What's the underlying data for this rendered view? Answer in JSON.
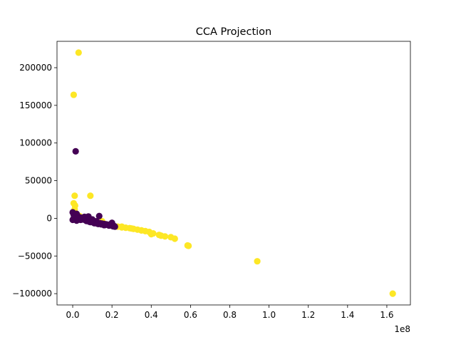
{
  "chart_data": {
    "type": "scatter",
    "title": "CCA Projection",
    "xlabel": "",
    "ylabel": "",
    "x_offset_label": "1e8",
    "x_scale_factor": 100000000,
    "xlim": [
      -0.08,
      1.72
    ],
    "ylim": [
      -115000,
      235000
    ],
    "x_ticks": [
      0.0,
      0.2,
      0.4,
      0.6,
      0.8,
      1.0,
      1.2,
      1.4,
      1.6
    ],
    "x_tick_labels": [
      "0.0",
      "0.2",
      "0.4",
      "0.6",
      "0.8",
      "1.0",
      "1.2",
      "1.4",
      "1.6"
    ],
    "y_ticks": [
      -100000,
      -50000,
      0,
      50000,
      100000,
      150000,
      200000
    ],
    "y_tick_labels": [
      "−100000",
      "−50000",
      "0",
      "50000",
      "100000",
      "150000",
      "200000"
    ],
    "grid": false,
    "legend": "none",
    "colors": {
      "class_1": "#fde725",
      "class_0": "#440154"
    },
    "series": [
      {
        "color": "#fde725",
        "x": [
          0.03,
          0.005,
          0.01,
          0.005,
          0.012,
          0.01,
          0.008,
          0.02,
          0.035,
          0.05,
          0.07,
          0.09,
          0.11,
          0.13,
          0.15,
          0.17,
          0.19,
          0.21,
          0.23,
          0.25,
          0.27,
          0.29,
          0.31,
          0.33,
          0.35,
          0.37,
          0.39,
          0.41,
          0.44,
          0.47,
          0.5,
          0.52,
          0.585,
          0.59,
          0.94,
          1.63,
          0.09,
          0.2,
          0.3,
          0.4,
          0.45,
          0.15,
          0.25,
          0.35
        ],
        "y": [
          220000,
          164000,
          30000,
          20000,
          17000,
          12000,
          9000,
          5000,
          3000,
          1000,
          -1000,
          -3000,
          -5000,
          -6000,
          -7000,
          -8000,
          -9000,
          -10000,
          -11000,
          -12000,
          -12500,
          -13000,
          -14000,
          -15000,
          -16000,
          -17000,
          -18000,
          -20000,
          -22000,
          -24000,
          -25000,
          -27000,
          -36000,
          -36500,
          -57000,
          -100000,
          30000,
          -8000,
          -13500,
          -21000,
          -23000,
          -4000,
          -11000,
          -16000
        ]
      },
      {
        "color": "#440154",
        "x": [
          0.015,
          0.0,
          0.005,
          0.01,
          0.02,
          0.03,
          0.04,
          0.05,
          0.06,
          0.07,
          0.08,
          0.09,
          0.1,
          0.11,
          0.12,
          0.13,
          0.14,
          0.15,
          0.16,
          0.17,
          0.18,
          0.19,
          0.2,
          0.21,
          0.215,
          0.0,
          0.01,
          0.02,
          0.03,
          0.04,
          0.05,
          0.07,
          0.09,
          0.11,
          0.13,
          0.135,
          0.02,
          0.06,
          0.1,
          0.12,
          0.16,
          0.2,
          0.005,
          0.025,
          0.045,
          0.065,
          0.085,
          0.105,
          0.125,
          0.145,
          0.165,
          0.185,
          0.205,
          0.08
        ],
        "y": [
          89000,
          8000,
          5000,
          4000,
          3000,
          2000,
          1000,
          0,
          -1000,
          -2000,
          -3000,
          -3500,
          -4000,
          -5000,
          -5500,
          -6000,
          -6500,
          -7000,
          -7500,
          -8000,
          -8500,
          -9000,
          -9500,
          -10000,
          -11000,
          -2000,
          -1000,
          -3000,
          1000,
          -2000,
          -1500,
          -3500,
          -5000,
          -6500,
          -7500,
          3000,
          6000,
          2000,
          -1500,
          -4000,
          -9000,
          -6000,
          0,
          -500,
          -1000,
          -2500,
          -4500,
          -5500,
          -7000,
          -8000,
          -8800,
          -9600,
          -10500,
          2500
        ]
      }
    ]
  }
}
